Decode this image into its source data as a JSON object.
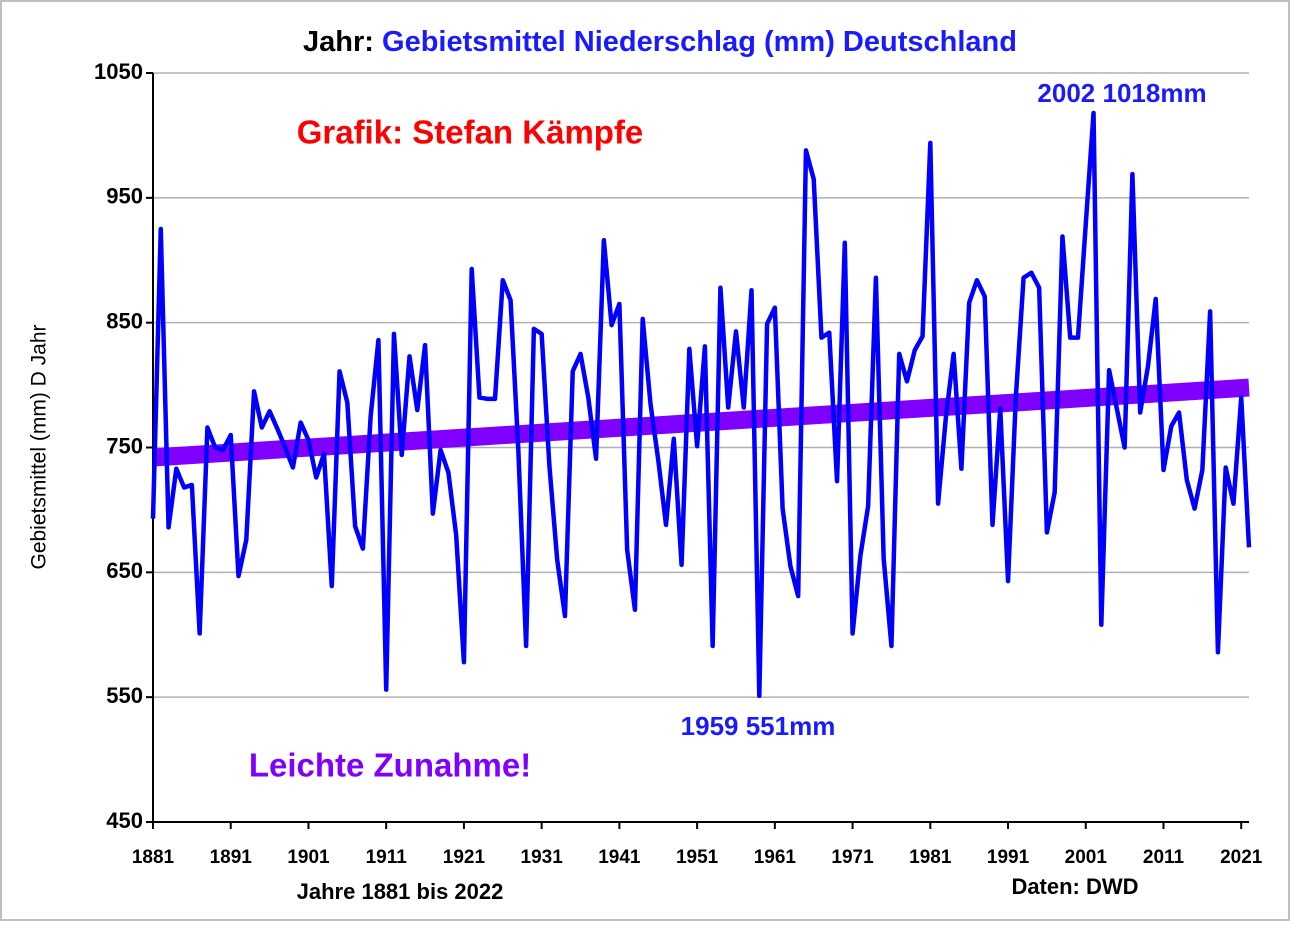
{
  "chart_data": {
    "type": "line",
    "title_prefix": "Jahr:",
    "title": "Gebietsmittel Niederschlag (mm) Deutschland",
    "y_label": "Gebietsmittel (mm) D Jahr",
    "x_label": "Jahre 1881 bis 2022",
    "source": "Daten: DWD",
    "annotations": [
      {
        "text": "2002 1018mm",
        "color": "#1a1aff"
      },
      {
        "text": "Grafik: Stefan Kämpfe",
        "color": "#ff0000"
      },
      {
        "text": "1959 551mm",
        "color": "#1a1aff"
      },
      {
        "text": "Leichte Zunahme!",
        "color": "#8000ff"
      }
    ],
    "x": [
      1881,
      1882,
      1883,
      1884,
      1885,
      1886,
      1887,
      1888,
      1889,
      1890,
      1891,
      1892,
      1893,
      1894,
      1895,
      1896,
      1897,
      1898,
      1899,
      1900,
      1901,
      1902,
      1903,
      1904,
      1905,
      1906,
      1907,
      1908,
      1909,
      1910,
      1911,
      1912,
      1913,
      1914,
      1915,
      1916,
      1917,
      1918,
      1919,
      1920,
      1921,
      1922,
      1923,
      1924,
      1925,
      1926,
      1927,
      1928,
      1929,
      1930,
      1931,
      1932,
      1933,
      1934,
      1935,
      1936,
      1937,
      1938,
      1939,
      1940,
      1941,
      1942,
      1943,
      1944,
      1945,
      1946,
      1947,
      1948,
      1949,
      1950,
      1951,
      1952,
      1953,
      1954,
      1955,
      1956,
      1957,
      1958,
      1959,
      1960,
      1961,
      1962,
      1963,
      1964,
      1965,
      1966,
      1967,
      1968,
      1969,
      1970,
      1971,
      1972,
      1973,
      1974,
      1975,
      1976,
      1977,
      1978,
      1979,
      1980,
      1981,
      1982,
      1983,
      1984,
      1985,
      1986,
      1987,
      1988,
      1989,
      1990,
      1991,
      1992,
      1993,
      1994,
      1995,
      1996,
      1997,
      1998,
      1999,
      2000,
      2001,
      2002,
      2003,
      2004,
      2005,
      2006,
      2007,
      2008,
      2009,
      2010,
      2011,
      2012,
      2013,
      2014,
      2015,
      2016,
      2017,
      2018,
      2019,
      2020,
      2021,
      2022
    ],
    "series": [
      {
        "color": "#0000ff",
        "values": [
          693,
          925,
          686,
          733,
          718,
          720,
          601,
          766,
          750,
          748,
          760,
          647,
          676,
          795,
          766,
          779,
          765,
          750,
          734,
          770,
          756,
          726,
          745,
          639,
          811,
          786,
          687,
          669,
          775,
          836,
          556,
          841,
          744,
          823,
          780,
          832,
          697,
          748,
          730,
          680,
          578,
          893,
          790,
          789,
          789,
          884,
          868,
          748,
          591,
          845,
          841,
          735,
          660,
          615,
          811,
          825,
          790,
          741,
          916,
          848,
          865,
          668,
          620,
          853,
          785,
          740,
          688,
          757,
          656,
          829,
          751,
          831,
          591,
          878,
          782,
          843,
          782,
          876,
          551,
          849,
          862,
          701,
          655,
          631,
          988,
          965,
          838,
          842,
          723,
          914,
          601,
          663,
          703,
          886,
          661,
          591,
          825,
          803,
          828,
          839,
          994,
          705,
          774,
          825,
          733,
          866,
          884,
          871,
          688,
          781,
          643,
          790,
          886,
          890,
          878,
          682,
          714,
          919,
          838,
          838,
          929,
          1018,
          608,
          812,
          781,
          750,
          969,
          778,
          815,
          869,
          732,
          767,
          778,
          724,
          701,
          732,
          859,
          586,
          734,
          705,
          790,
          670
        ]
      }
    ],
    "trend": {
      "color": "#8000ff",
      "x": [
        1881,
        2022
      ],
      "values": [
        742,
        798
      ]
    },
    "xlim": [
      1881,
      2022
    ],
    "xticks": [
      1881,
      1891,
      1901,
      1911,
      1921,
      1931,
      1941,
      1951,
      1961,
      1971,
      1981,
      1991,
      2001,
      2011,
      2021
    ],
    "ylim": [
      450,
      1050
    ],
    "yticks": [
      450,
      550,
      650,
      750,
      850,
      950,
      1050
    ],
    "grid": true
  }
}
